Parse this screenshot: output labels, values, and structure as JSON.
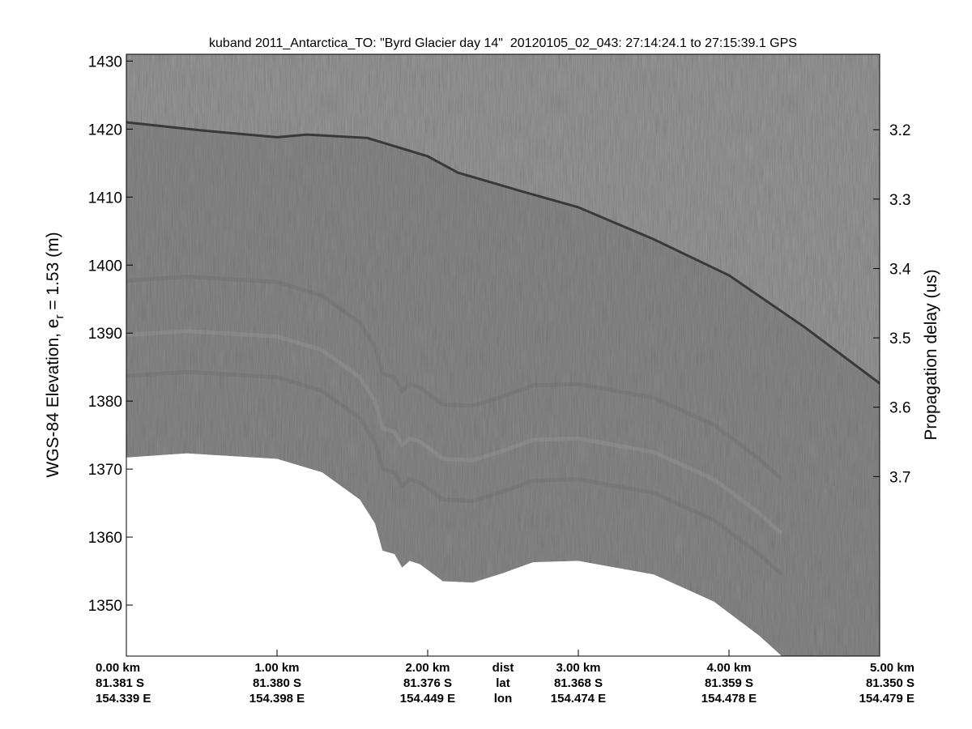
{
  "chart_data": {
    "type": "radargram",
    "title": "kuband 2011_Antarctica_TO: \"Byrd Glacier day 14\"  20120105_02_043: 27:14:24.1 to 27:15:39.1 GPS",
    "ylabel_left_main": "WGS-84 Elevation, e",
    "ylabel_left_sub": "r",
    "ylabel_left_tail": " = 1.53 (m)",
    "ylabel_right": "Propagation delay (us)",
    "x_range_km": [
      0,
      5
    ],
    "ylim": [
      1342.5,
      1431
    ],
    "y_ticks": [
      1350,
      1360,
      1370,
      1380,
      1390,
      1400,
      1410,
      1420,
      1430
    ],
    "y_ticks_right": [
      {
        "label": "3.2",
        "elevation": 1419.9
      },
      {
        "label": "3.3",
        "elevation": 1409.7
      },
      {
        "label": "3.4",
        "elevation": 1399.5
      },
      {
        "label": "3.5",
        "elevation": 1389.3
      },
      {
        "label": "3.6",
        "elevation": 1379.1
      },
      {
        "label": "3.7",
        "elevation": 1368.9
      }
    ],
    "x_ticks": [
      {
        "km": 0,
        "dist": "0.00 km",
        "lat": "81.381 S",
        "lon": "154.339 E"
      },
      {
        "km": 1,
        "dist": "1.00 km",
        "lat": "81.380 S",
        "lon": "154.398 E"
      },
      {
        "km": 2,
        "dist": "2.00 km",
        "lat": "81.376 S",
        "lon": "154.449 E"
      },
      {
        "km": 3,
        "dist": "3.00 km",
        "lat": "81.368 S",
        "lon": "154.474 E"
      },
      {
        "km": 4,
        "dist": "4.00 km",
        "lat": "81.359 S",
        "lon": "154.478 E"
      },
      {
        "km": 5,
        "dist": "5.00 km",
        "lat": "81.350 S",
        "lon": "154.479 E"
      }
    ],
    "row_legend": {
      "dist": "dist",
      "lat": "lat",
      "lon": "lon",
      "km": 2.5
    },
    "surface": [
      {
        "km": 0.0,
        "elev": 1421.0
      },
      {
        "km": 0.5,
        "elev": 1419.8
      },
      {
        "km": 1.0,
        "elev": 1418.8
      },
      {
        "km": 1.2,
        "elev": 1419.2
      },
      {
        "km": 1.6,
        "elev": 1418.7
      },
      {
        "km": 2.0,
        "elev": 1416.0
      },
      {
        "km": 2.2,
        "elev": 1413.6
      },
      {
        "km": 2.6,
        "elev": 1411.0
      },
      {
        "km": 3.0,
        "elev": 1408.5
      },
      {
        "km": 3.5,
        "elev": 1403.8
      },
      {
        "km": 4.0,
        "elev": 1398.5
      },
      {
        "km": 4.5,
        "elev": 1390.9
      },
      {
        "km": 5.0,
        "elev": 1382.6
      }
    ],
    "data_bottom": [
      {
        "km": 0.0,
        "elev": 1371.7
      },
      {
        "km": 0.4,
        "elev": 1372.3
      },
      {
        "km": 1.0,
        "elev": 1371.5
      },
      {
        "km": 1.3,
        "elev": 1369.5
      },
      {
        "km": 1.55,
        "elev": 1365.5
      },
      {
        "km": 1.65,
        "elev": 1362.0
      },
      {
        "km": 1.7,
        "elev": 1358.0
      },
      {
        "km": 1.78,
        "elev": 1357.5
      },
      {
        "km": 1.83,
        "elev": 1355.5
      },
      {
        "km": 1.88,
        "elev": 1356.5
      },
      {
        "km": 1.95,
        "elev": 1356.0
      },
      {
        "km": 2.1,
        "elev": 1353.5
      },
      {
        "km": 2.3,
        "elev": 1353.3
      },
      {
        "km": 2.5,
        "elev": 1354.7
      },
      {
        "km": 2.7,
        "elev": 1356.3
      },
      {
        "km": 3.0,
        "elev": 1356.5
      },
      {
        "km": 3.5,
        "elev": 1354.5
      },
      {
        "km": 3.9,
        "elev": 1350.5
      },
      {
        "km": 4.2,
        "elev": 1345.5
      },
      {
        "km": 4.35,
        "elev": 1342.5
      }
    ],
    "colors": {
      "background": "#ffffff",
      "echogram": "#7c7c7c",
      "surface_line": "#2b2b2b"
    }
  }
}
